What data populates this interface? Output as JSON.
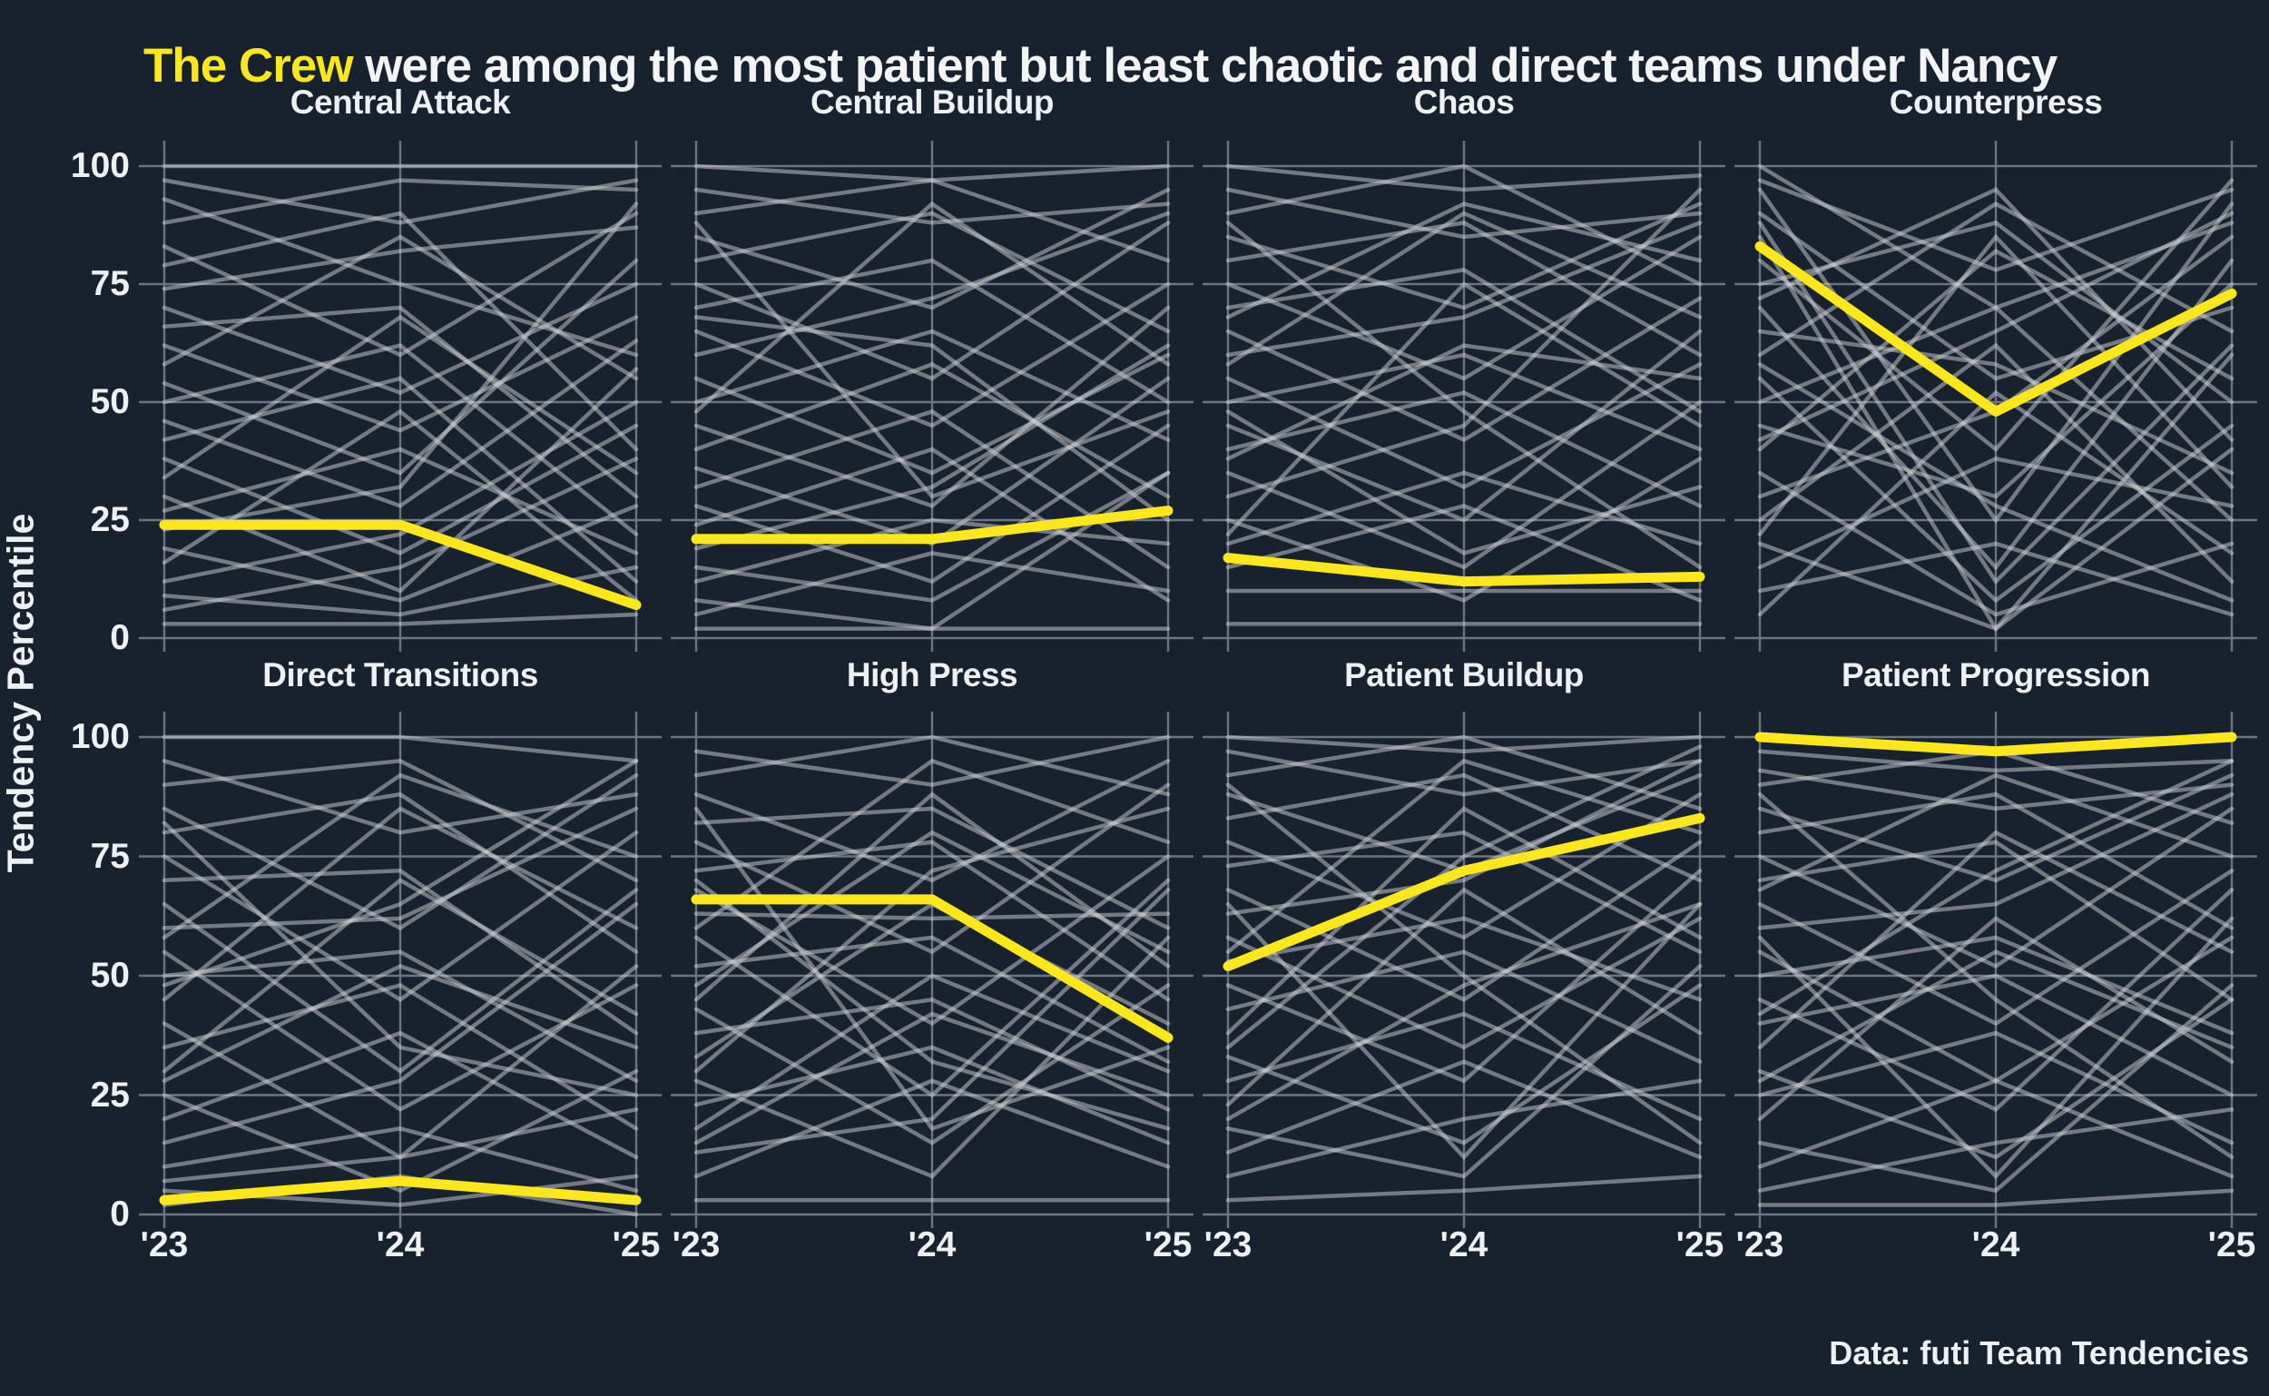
{
  "title": {
    "highlight": "The Crew",
    "rest": " were among the most patient but least chaotic and direct teams under Nancy"
  },
  "y_axis_label": "Tendency Percentile",
  "caption": "Data: futi Team Tendencies",
  "highlight_team": "The Crew",
  "colors": {
    "background": "#18212e",
    "highlight": "#ffe71c",
    "gray_line": "#cfd3d7",
    "grid": "#6b7480",
    "text": "#f2f4f6"
  },
  "axes": {
    "x_ticks": [
      "'23",
      "'24",
      "'25"
    ],
    "y_ticks": [
      0,
      25,
      50,
      75,
      100
    ],
    "ylim": [
      0,
      100
    ],
    "grid": true
  },
  "chart_data": [
    {
      "type": "line",
      "title": "Central Attack",
      "x": [
        "'23",
        "'24",
        "'25"
      ],
      "ylim": [
        0,
        100
      ],
      "highlight_series": {
        "name": "The Crew",
        "values": [
          24,
          24,
          7
        ]
      },
      "other_teams": [
        [
          100,
          100,
          100
        ],
        [
          97,
          88,
          97
        ],
        [
          93,
          75,
          60
        ],
        [
          88,
          97,
          95
        ],
        [
          83,
          60,
          90
        ],
        [
          79,
          90,
          40
        ],
        [
          74,
          82,
          87
        ],
        [
          70,
          52,
          75
        ],
        [
          66,
          70,
          30
        ],
        [
          62,
          44,
          68
        ],
        [
          58,
          85,
          55
        ],
        [
          54,
          35,
          80
        ],
        [
          50,
          62,
          22
        ],
        [
          46,
          28,
          63
        ],
        [
          42,
          55,
          12
        ],
        [
          38,
          18,
          45
        ],
        [
          34,
          68,
          35
        ],
        [
          30,
          10,
          57
        ],
        [
          27,
          40,
          18
        ],
        [
          23,
          32,
          92
        ],
        [
          19,
          8,
          28
        ],
        [
          16,
          48,
          8
        ],
        [
          12,
          22,
          50
        ],
        [
          9,
          5,
          15
        ],
        [
          6,
          15,
          38
        ],
        [
          3,
          3,
          5
        ]
      ]
    },
    {
      "type": "line",
      "title": "Central Buildup",
      "x": [
        "'23",
        "'24",
        "'25"
      ],
      "ylim": [
        0,
        100
      ],
      "highlight_series": {
        "name": "The Crew",
        "values": [
          21,
          21,
          27
        ]
      },
      "other_teams": [
        [
          100,
          97,
          100
        ],
        [
          95,
          88,
          92
        ],
        [
          90,
          97,
          80
        ],
        [
          85,
          70,
          95
        ],
        [
          80,
          90,
          65
        ],
        [
          75,
          55,
          88
        ],
        [
          70,
          80,
          50
        ],
        [
          65,
          45,
          75
        ],
        [
          60,
          72,
          90
        ],
        [
          55,
          35,
          60
        ],
        [
          50,
          65,
          42
        ],
        [
          45,
          28,
          70
        ],
        [
          40,
          58,
          30
        ],
        [
          36,
          20,
          55
        ],
        [
          32,
          48,
          15
        ],
        [
          28,
          12,
          45
        ],
        [
          24,
          40,
          8
        ],
        [
          19,
          32,
          62
        ],
        [
          15,
          8,
          35
        ],
        [
          12,
          25,
          20
        ],
        [
          8,
          2,
          35
        ],
        [
          5,
          18,
          10
        ],
        [
          2,
          2,
          2
        ],
        [
          68,
          62,
          25
        ],
        [
          88,
          30,
          48
        ],
        [
          48,
          92,
          58
        ]
      ]
    },
    {
      "type": "line",
      "title": "Chaos",
      "x": [
        "'23",
        "'24",
        "'25"
      ],
      "ylim": [
        0,
        100
      ],
      "highlight_series": {
        "name": "The Crew",
        "values": [
          17,
          12,
          13
        ]
      },
      "other_teams": [
        [
          100,
          95,
          98
        ],
        [
          95,
          85,
          90
        ],
        [
          90,
          100,
          75
        ],
        [
          85,
          70,
          92
        ],
        [
          80,
          88,
          60
        ],
        [
          75,
          55,
          85
        ],
        [
          70,
          78,
          48
        ],
        [
          65,
          42,
          72
        ],
        [
          60,
          68,
          88
        ],
        [
          55,
          32,
          58
        ],
        [
          50,
          60,
          40
        ],
        [
          45,
          25,
          65
        ],
        [
          40,
          52,
          28
        ],
        [
          35,
          15,
          50
        ],
        [
          30,
          45,
          95
        ],
        [
          25,
          8,
          38
        ],
        [
          20,
          35,
          20
        ],
        [
          15,
          28,
          8
        ],
        [
          10,
          10,
          10
        ],
        [
          3,
          3,
          3
        ],
        [
          58,
          90,
          68
        ],
        [
          48,
          18,
          32
        ],
        [
          88,
          48,
          15
        ],
        [
          68,
          92,
          80
        ],
        [
          38,
          62,
          55
        ],
        [
          22,
          75,
          45
        ]
      ]
    },
    {
      "type": "line",
      "title": "Counterpress",
      "x": [
        "'23",
        "'24",
        "'25"
      ],
      "ylim": [
        0,
        100
      ],
      "highlight_series": {
        "name": "The Crew",
        "values": [
          83,
          48,
          73
        ]
      },
      "other_teams": [
        [
          100,
          70,
          88
        ],
        [
          95,
          25,
          92
        ],
        [
          90,
          55,
          70
        ],
        [
          85,
          2,
          60
        ],
        [
          80,
          40,
          97
        ],
        [
          75,
          88,
          50
        ],
        [
          70,
          15,
          80
        ],
        [
          65,
          58,
          35
        ],
        [
          60,
          92,
          65
        ],
        [
          55,
          8,
          45
        ],
        [
          50,
          70,
          25
        ],
        [
          45,
          30,
          75
        ],
        [
          40,
          82,
          55
        ],
        [
          35,
          5,
          20
        ],
        [
          30,
          48,
          85
        ],
        [
          25,
          62,
          12
        ],
        [
          20,
          2,
          40
        ],
        [
          15,
          38,
          28
        ],
        [
          10,
          20,
          5
        ],
        [
          5,
          52,
          18
        ],
        [
          97,
          78,
          95
        ],
        [
          88,
          12,
          62
        ],
        [
          72,
          95,
          42
        ],
        [
          58,
          28,
          8
        ],
        [
          42,
          65,
          90
        ],
        [
          22,
          85,
          32
        ]
      ]
    },
    {
      "type": "line",
      "title": "Direct Transitions",
      "x": [
        "'23",
        "'24",
        "'25"
      ],
      "ylim": [
        0,
        100
      ],
      "highlight_series": {
        "name": "The Crew",
        "values": [
          3,
          7,
          3
        ]
      },
      "other_teams": [
        [
          100,
          100,
          95
        ],
        [
          95,
          80,
          88
        ],
        [
          90,
          95,
          70
        ],
        [
          85,
          60,
          92
        ],
        [
          80,
          88,
          55
        ],
        [
          75,
          45,
          80
        ],
        [
          70,
          72,
          38
        ],
        [
          65,
          30,
          68
        ],
        [
          60,
          62,
          85
        ],
        [
          55,
          22,
          48
        ],
        [
          50,
          55,
          28
        ],
        [
          45,
          85,
          60
        ],
        [
          40,
          12,
          52
        ],
        [
          35,
          48,
          18
        ],
        [
          30,
          70,
          42
        ],
        [
          25,
          5,
          30
        ],
        [
          20,
          38,
          12
        ],
        [
          15,
          28,
          65
        ],
        [
          10,
          18,
          5
        ],
        [
          7,
          12,
          22
        ],
        [
          5,
          2,
          8
        ],
        [
          2,
          8,
          0
        ],
        [
          58,
          92,
          75
        ],
        [
          82,
          35,
          25
        ],
        [
          48,
          65,
          95
        ],
        [
          28,
          52,
          35
        ]
      ]
    },
    {
      "type": "line",
      "title": "High Press",
      "x": [
        "'23",
        "'24",
        "'25"
      ],
      "ylim": [
        0,
        100
      ],
      "highlight_series": {
        "name": "The Crew",
        "values": [
          66,
          66,
          37
        ]
      },
      "other_teams": [
        [
          97,
          90,
          100
        ],
        [
          92,
          100,
          88
        ],
        [
          88,
          70,
          95
        ],
        [
          82,
          85,
          60
        ],
        [
          78,
          55,
          90
        ],
        [
          72,
          78,
          45
        ],
        [
          68,
          40,
          75
        ],
        [
          63,
          62,
          63
        ],
        [
          58,
          25,
          70
        ],
        [
          52,
          58,
          32
        ],
        [
          48,
          80,
          55
        ],
        [
          43,
          15,
          48
        ],
        [
          38,
          45,
          22
        ],
        [
          33,
          65,
          40
        ],
        [
          28,
          8,
          58
        ],
        [
          23,
          35,
          15
        ],
        [
          18,
          50,
          30
        ],
        [
          13,
          20,
          68
        ],
        [
          8,
          28,
          10
        ],
        [
          3,
          3,
          3
        ],
        [
          60,
          95,
          78
        ],
        [
          85,
          18,
          35
        ],
        [
          45,
          88,
          52
        ],
        [
          30,
          72,
          85
        ],
        [
          15,
          42,
          25
        ],
        [
          70,
          32,
          18
        ]
      ]
    },
    {
      "type": "line",
      "title": "Patient Buildup",
      "x": [
        "'23",
        "'24",
        "'25"
      ],
      "ylim": [
        0,
        100
      ],
      "highlight_series": {
        "name": "The Crew",
        "values": [
          52,
          72,
          83
        ]
      },
      "other_teams": [
        [
          100,
          97,
          100
        ],
        [
          97,
          88,
          95
        ],
        [
          92,
          100,
          85
        ],
        [
          88,
          72,
          92
        ],
        [
          83,
          92,
          70
        ],
        [
          78,
          58,
          88
        ],
        [
          73,
          80,
          55
        ],
        [
          68,
          45,
          78
        ],
        [
          63,
          70,
          95
        ],
        [
          58,
          35,
          62
        ],
        [
          53,
          62,
          45
        ],
        [
          48,
          28,
          72
        ],
        [
          43,
          55,
          32
        ],
        [
          38,
          85,
          58
        ],
        [
          33,
          15,
          48
        ],
        [
          28,
          42,
          20
        ],
        [
          23,
          68,
          38
        ],
        [
          18,
          8,
          52
        ],
        [
          13,
          32,
          12
        ],
        [
          8,
          20,
          28
        ],
        [
          3,
          5,
          8
        ],
        [
          65,
          12,
          65
        ],
        [
          90,
          50,
          15
        ],
        [
          55,
          95,
          80
        ],
        [
          35,
          75,
          98
        ],
        [
          20,
          48,
          65
        ]
      ]
    },
    {
      "type": "line",
      "title": "Patient Progression",
      "x": [
        "'23",
        "'24",
        "'25"
      ],
      "ylim": [
        0,
        100
      ],
      "highlight_series": {
        "name": "The Crew",
        "values": [
          100,
          97,
          100
        ]
      },
      "other_teams": [
        [
          97,
          93,
          95
        ],
        [
          93,
          85,
          90
        ],
        [
          90,
          97,
          82
        ],
        [
          85,
          70,
          92
        ],
        [
          80,
          88,
          60
        ],
        [
          75,
          52,
          85
        ],
        [
          70,
          78,
          45
        ],
        [
          65,
          40,
          72
        ],
        [
          60,
          65,
          88
        ],
        [
          55,
          28,
          58
        ],
        [
          50,
          58,
          38
        ],
        [
          45,
          22,
          68
        ],
        [
          40,
          50,
          25
        ],
        [
          35,
          80,
          55
        ],
        [
          30,
          12,
          45
        ],
        [
          25,
          38,
          15
        ],
        [
          20,
          62,
          32
        ],
        [
          15,
          5,
          48
        ],
        [
          10,
          28,
          8
        ],
        [
          5,
          15,
          22
        ],
        [
          2,
          2,
          5
        ],
        [
          68,
          92,
          75
        ],
        [
          88,
          45,
          12
        ],
        [
          58,
          8,
          62
        ],
        [
          42,
          72,
          95
        ],
        [
          28,
          55,
          35
        ]
      ]
    }
  ]
}
